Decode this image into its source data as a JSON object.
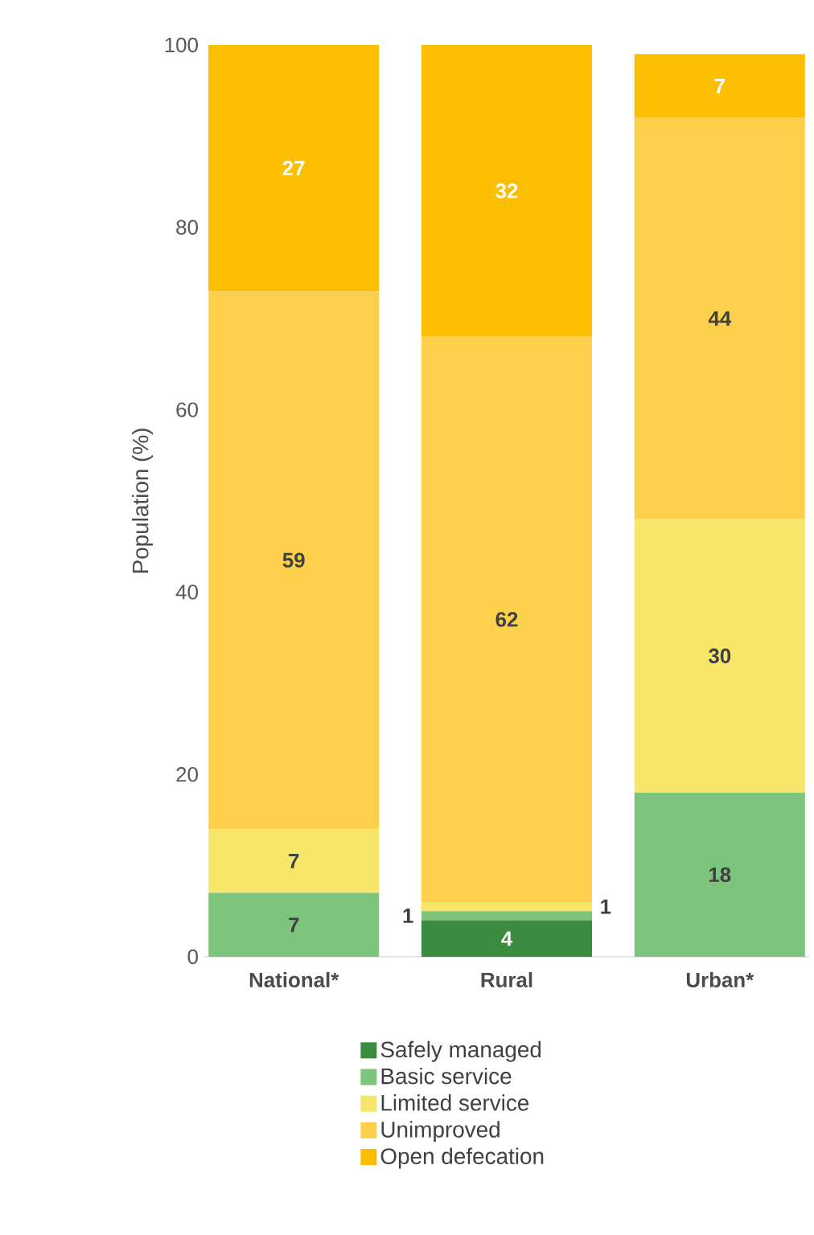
{
  "chart_data": {
    "type": "bar",
    "stacked": true,
    "ylabel": "Population (%)",
    "categories": [
      "National*",
      "Rural",
      "Urban*"
    ],
    "series": [
      {
        "name": "Safely managed",
        "color": "#3b8c3e",
        "values": [
          0,
          4,
          0
        ],
        "value_labels": [
          null,
          "4",
          null
        ]
      },
      {
        "name": "Basic service",
        "color": "#7dc47c",
        "values": [
          7,
          1,
          18
        ],
        "value_labels": [
          "7",
          "1",
          "18"
        ]
      },
      {
        "name": "Limited service",
        "color": "#f8e66a",
        "values": [
          7,
          1,
          30
        ],
        "value_labels": [
          "7",
          "1",
          "30"
        ]
      },
      {
        "name": "Unimproved",
        "color": "#fcd04a",
        "values": [
          59,
          62,
          44
        ],
        "value_labels": [
          "59",
          "62",
          "44"
        ]
      },
      {
        "name": "Open defecation",
        "color": "#fbbe00",
        "values": [
          27,
          32,
          7
        ],
        "value_labels": [
          "27",
          "32",
          "7"
        ]
      }
    ],
    "ylim": [
      0,
      100
    ],
    "yticks": [
      0,
      20,
      40,
      60,
      80,
      100
    ],
    "legend": "bottom",
    "grid": false
  }
}
